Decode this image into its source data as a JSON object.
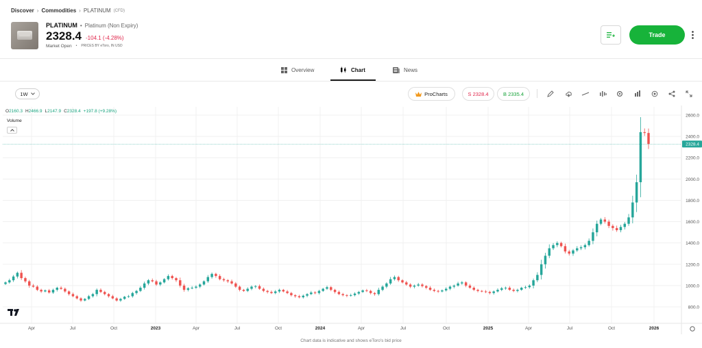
{
  "breadcrumb": {
    "items": [
      "Discover",
      "Commodities",
      "PLATINUM"
    ],
    "suffix": "(CFD)"
  },
  "asset": {
    "symbol": "PLATINUM",
    "full_name": "Platinum (Non Expiry)",
    "price": "2328.4",
    "change": "-104.1 (-4.28%)",
    "market_status": "Market Open",
    "price_source": "PRICES BY eToro, IN USD"
  },
  "actions": {
    "trade_label": "Trade",
    "watchlist_icon": "add-to-watchlist-icon",
    "more_icon": "more-vertical-icon"
  },
  "tabs": [
    {
      "label": "Overview",
      "icon": "grid-icon"
    },
    {
      "label": "Chart",
      "icon": "candlestick-icon"
    },
    {
      "label": "News",
      "icon": "newspaper-icon"
    }
  ],
  "toolbar": {
    "interval": "1W",
    "procharts_label": "ProCharts",
    "sell_label": "S 2328.4",
    "buy_label": "B 2335.4",
    "tools": [
      "draw-icon",
      "indicators-icon",
      "line-icon",
      "compare-icon",
      "settings-icon",
      "chart-type-icon",
      "alert-icon",
      "share-icon",
      "fullscreen-icon"
    ]
  },
  "ohlc": {
    "open_label": "O",
    "open": "2160.3",
    "high_label": "H",
    "high": "2466.9",
    "low_label": "L",
    "low": "2147.9",
    "close_label": "C",
    "close": "2328.4",
    "change": "+197.8 (+9.28%)"
  },
  "chart_panel": {
    "volume_label": "Volume",
    "toggle_glyph": "^"
  },
  "colors": {
    "up": "#26a69a",
    "down": "#ef5350",
    "accent": "#17b33a",
    "sell": "#e0264b"
  },
  "chart_data": {
    "type": "candlestick",
    "title": "",
    "xlabel": "",
    "ylabel": "",
    "ylim": [
      700,
      2700
    ],
    "y_ticks": [
      "800.0",
      "1000.0",
      "1200.0",
      "1400.0",
      "1600.0",
      "1800.0",
      "2000.0",
      "2200.0",
      "2400.0",
      "2600.0"
    ],
    "x_tick_labels": [
      "Apr",
      "Jul",
      "Oct",
      "2023",
      "Apr",
      "Jul",
      "Oct",
      "2024",
      "Apr",
      "Jul",
      "Oct",
      "2025",
      "Apr",
      "Jul",
      "Oct",
      "2026"
    ],
    "last_price_label": "2328.4",
    "last_price": 2328.4,
    "close_series": [
      1030,
      1050,
      1085,
      1120,
      1070,
      1040,
      1000,
      990,
      960,
      945,
      955,
      935,
      960,
      980,
      970,
      945,
      920,
      900,
      880,
      860,
      875,
      900,
      920,
      960,
      940,
      920,
      900,
      880,
      860,
      875,
      895,
      900,
      930,
      950,
      980,
      1020,
      1050,
      1040,
      1010,
      1030,
      1060,
      1090,
      1070,
      1050,
      1000,
      960,
      975,
      980,
      990,
      1010,
      1040,
      1080,
      1110,
      1090,
      1060,
      1050,
      1040,
      1020,
      990,
      960,
      950,
      970,
      990,
      995,
      970,
      950,
      940,
      930,
      945,
      960,
      945,
      930,
      910,
      900,
      890,
      905,
      920,
      935,
      930,
      950,
      970,
      985,
      960,
      940,
      920,
      910,
      905,
      910,
      925,
      940,
      955,
      950,
      930,
      920,
      960,
      990,
      1020,
      1060,
      1080,
      1050,
      1030,
      1010,
      990,
      1000,
      1010,
      995,
      980,
      960,
      950,
      945,
      955,
      970,
      990,
      1000,
      1020,
      1030,
      1000,
      980,
      960,
      950,
      945,
      940,
      930,
      945,
      960,
      975,
      980,
      960,
      950,
      960,
      980,
      985,
      1000,
      1050,
      1100,
      1200,
      1280,
      1350,
      1380,
      1400,
      1370,
      1320,
      1300,
      1330,
      1350,
      1360,
      1380,
      1420,
      1500,
      1580,
      1620,
      1600,
      1560,
      1540,
      1520,
      1550,
      1580,
      1640,
      1780,
      1970,
      2440,
      2432,
      2328.4
    ]
  },
  "footnote": "Chart data is indicative and shows eToro's bid price"
}
